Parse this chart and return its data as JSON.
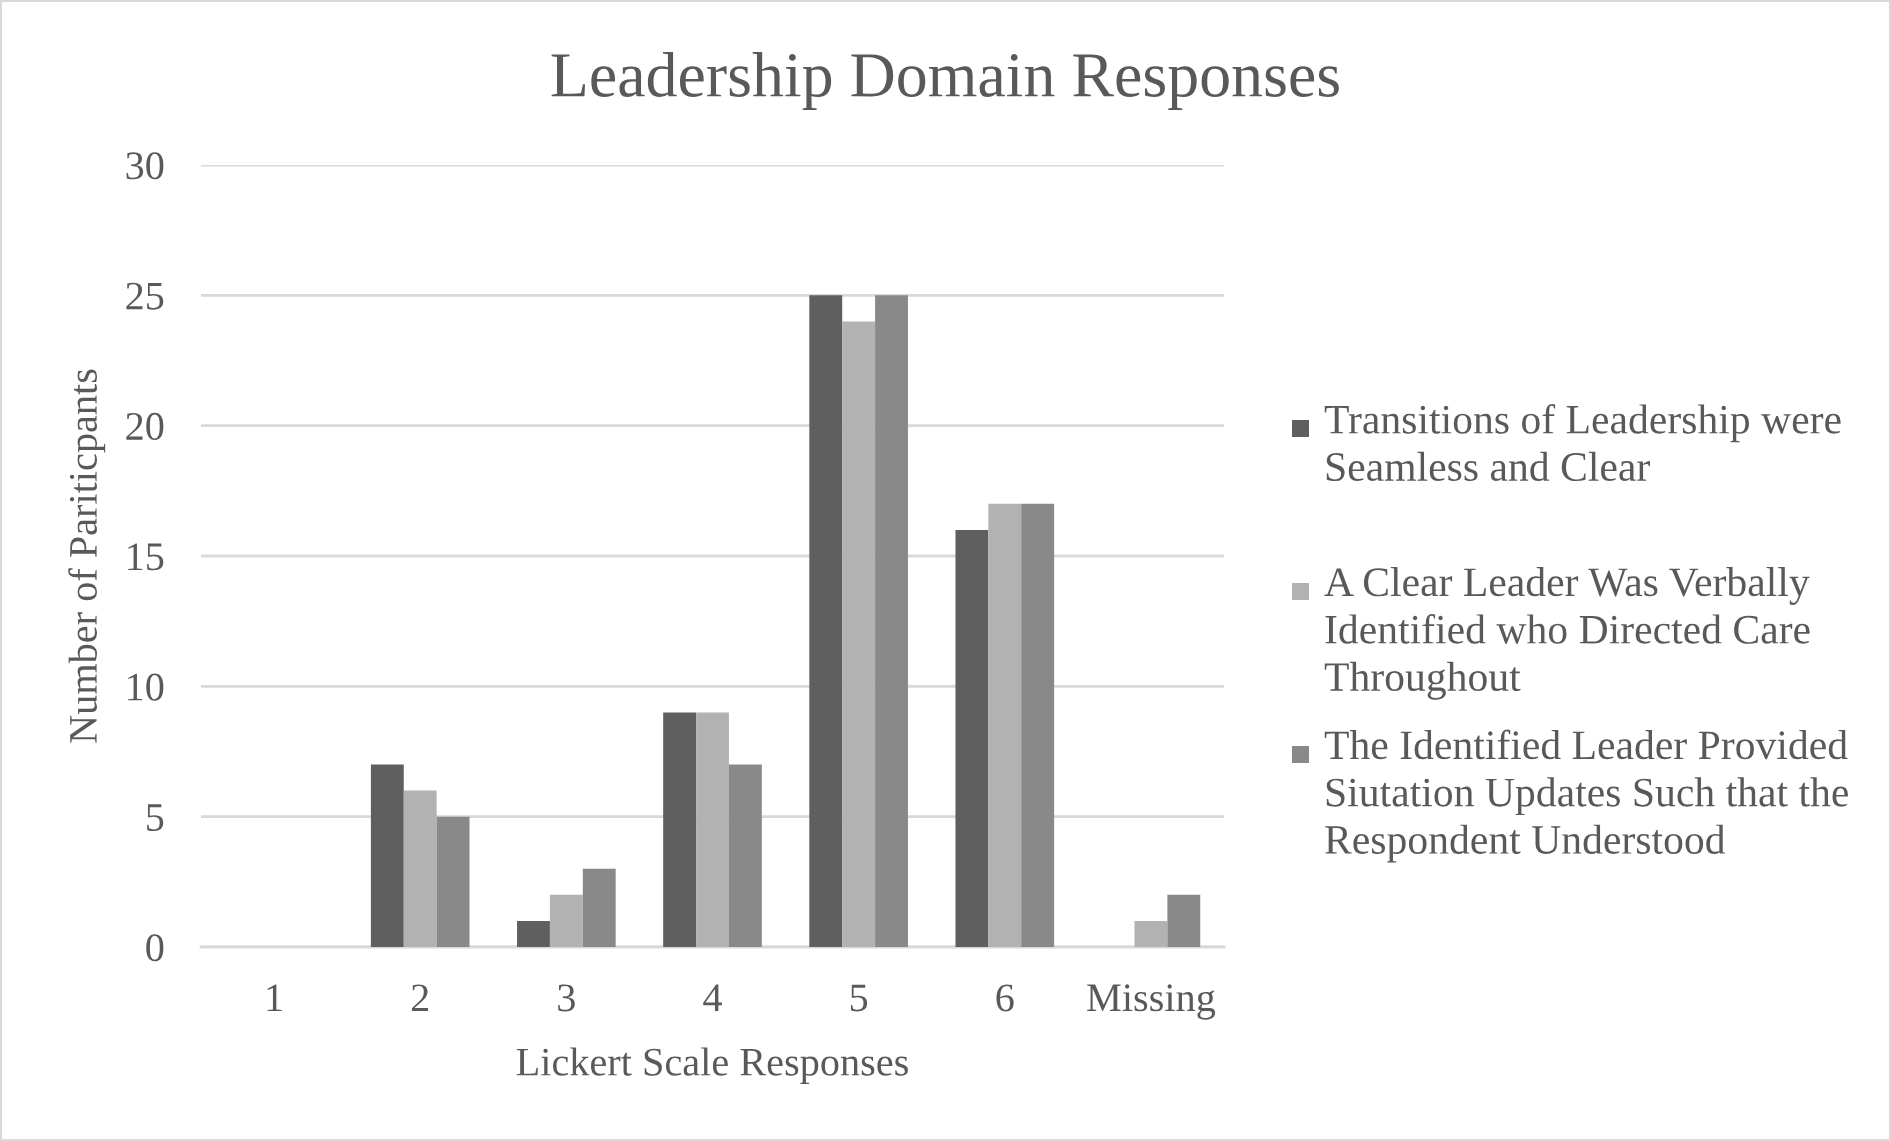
{
  "chart_data": {
    "type": "bar",
    "title": "Leadership Domain Responses",
    "xlabel": "Lickert Scale Responses",
    "ylabel": "Number of Pariticpants",
    "categories": [
      "1",
      "2",
      "3",
      "4",
      "5",
      "6",
      "Missing"
    ],
    "series": [
      {
        "name": "Transitions of Leadership were Seamless and Clear",
        "color": "#5f5f5f",
        "values": [
          0,
          7,
          1,
          9,
          25,
          16,
          0
        ]
      },
      {
        "name": "A Clear Leader Was Verbally Identified who Directed Care Throughout",
        "color": "#b2b2b2",
        "values": [
          0,
          6,
          2,
          9,
          24,
          17,
          1
        ]
      },
      {
        "name": "The Identified Leader Provided Siutation Updates Such that the Respondent Understood",
        "color": "#898989",
        "values": [
          0,
          5,
          3,
          7,
          25,
          17,
          2
        ]
      }
    ],
    "ylim": [
      0,
      30
    ],
    "yticks": [
      0,
      5,
      10,
      15,
      20,
      25,
      30
    ],
    "grid": "y",
    "legend": "right"
  }
}
